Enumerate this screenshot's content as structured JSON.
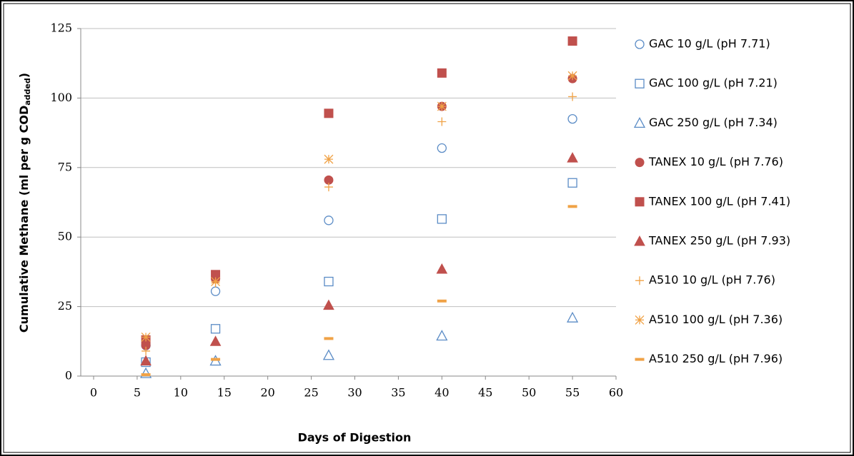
{
  "chart_data": {
    "type": "scatter",
    "xlabel": "Days of Digestion",
    "ylabel": "Cumulative Methane (ml per g COD",
    "ylabel_sub": "added",
    "ylabel_end": ")",
    "x": [
      6,
      14,
      27,
      40,
      55
    ],
    "xlim": [
      0,
      60
    ],
    "xticks": [
      0,
      5,
      10,
      15,
      20,
      25,
      30,
      35,
      40,
      45,
      50,
      55,
      60
    ],
    "ylim": [
      0,
      125
    ],
    "yticks": [
      0,
      25,
      50,
      75,
      100,
      125
    ],
    "grid": true,
    "legend": "right",
    "series": [
      {
        "name": "GAC 10 g/L (pH 7.71)",
        "color": "#5b8cc6",
        "marker": "circle-open",
        "values": [
          11,
          30.5,
          56,
          82,
          92.5
        ]
      },
      {
        "name": "GAC 100 g/L (pH 7.21)",
        "color": "#5b8cc6",
        "marker": "square-open",
        "values": [
          5,
          17,
          34,
          56.5,
          69.5
        ]
      },
      {
        "name": "GAC 250 g/L (pH 7.34)",
        "color": "#5b8cc6",
        "marker": "triangle-open",
        "values": [
          1,
          5.5,
          7.5,
          14.5,
          21
        ]
      },
      {
        "name": "TANEX 10 g/L (pH 7.76)",
        "color": "#c0504d",
        "marker": "circle",
        "values": [
          11,
          35,
          70.5,
          97,
          107
        ]
      },
      {
        "name": "TANEX 100 g/L (pH 7.41)",
        "color": "#c0504d",
        "marker": "square",
        "values": [
          13,
          36.5,
          94.5,
          109,
          120.5
        ]
      },
      {
        "name": "TANEX 250 g/L (pH 7.93)",
        "color": "#c0504d",
        "marker": "triangle",
        "values": [
          5.5,
          12.5,
          25.5,
          38.5,
          78.5
        ]
      },
      {
        "name": "A510 10 g/L (pH 7.76)",
        "color": "#f0a246",
        "marker": "plus",
        "values": [
          9,
          33.5,
          68,
          91.5,
          100.5
        ]
      },
      {
        "name": "A510 100 g/L (pH 7.36)",
        "color": "#f0a246",
        "marker": "star",
        "values": [
          14,
          34,
          78,
          97,
          108
        ]
      },
      {
        "name": "A510 250 g/L (pH 7.96)",
        "color": "#f0a246",
        "marker": "dash",
        "values": [
          0.5,
          6,
          13.5,
          27,
          61
        ]
      }
    ]
  }
}
